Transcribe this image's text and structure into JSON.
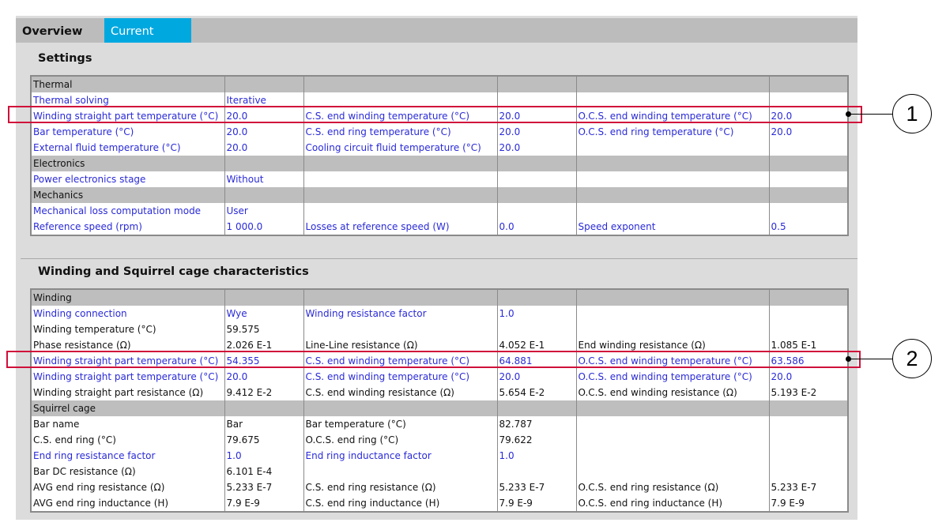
{
  "tabs": [
    {
      "label": "Overview",
      "active": false
    },
    {
      "label": "Current",
      "active": true
    }
  ],
  "colors": {
    "tab_active": "#00a8e0",
    "link_text": "#2a2ad8",
    "highlight": "#d0103a",
    "header_row": "#bebebe"
  },
  "settings": {
    "title": "Settings",
    "rows": [
      {
        "header": "Thermal"
      },
      {
        "cells": [
          [
            "Thermal solving",
            1
          ],
          [
            "Iterative",
            1
          ],
          [
            "",
            0
          ],
          [
            "",
            0
          ],
          [
            "",
            0
          ],
          [
            "",
            0
          ]
        ]
      },
      {
        "cells": [
          [
            "Winding straight part temperature (°C)",
            1
          ],
          [
            "20.0",
            1
          ],
          [
            "C.S. end winding temperature (°C)",
            1
          ],
          [
            "20.0",
            1
          ],
          [
            "O.C.S. end winding temperature (°C)",
            1
          ],
          [
            "20.0",
            1
          ]
        ]
      },
      {
        "cells": [
          [
            "Bar temperature (°C)",
            1
          ],
          [
            "20.0",
            1
          ],
          [
            "C.S. end ring temperature (°C)",
            1
          ],
          [
            "20.0",
            1
          ],
          [
            "O.C.S. end ring temperature (°C)",
            1
          ],
          [
            "20.0",
            1
          ]
        ]
      },
      {
        "cells": [
          [
            "External fluid temperature (°C)",
            1
          ],
          [
            "20.0",
            1
          ],
          [
            "Cooling circuit fluid temperature (°C)",
            1
          ],
          [
            "20.0",
            1
          ],
          [
            "",
            0
          ],
          [
            "",
            0
          ]
        ]
      },
      {
        "header": "Electronics"
      },
      {
        "cells": [
          [
            "Power electronics stage",
            1
          ],
          [
            "Without",
            1
          ],
          [
            "",
            0
          ],
          [
            "",
            0
          ],
          [
            "",
            0
          ],
          [
            "",
            0
          ]
        ]
      },
      {
        "header": "Mechanics"
      },
      {
        "cells": [
          [
            "Mechanical loss computation mode",
            1
          ],
          [
            "User",
            1
          ],
          [
            "",
            0
          ],
          [
            "",
            0
          ],
          [
            "",
            0
          ],
          [
            "",
            0
          ]
        ]
      },
      {
        "cells": [
          [
            "Reference speed (rpm)",
            1
          ],
          [
            "1 000.0",
            1
          ],
          [
            "Losses at reference speed (W)",
            1
          ],
          [
            "0.0",
            1
          ],
          [
            "Speed exponent",
            1
          ],
          [
            "0.5",
            1
          ]
        ]
      }
    ]
  },
  "winding": {
    "title": "Winding and Squirrel cage characteristics",
    "rows": [
      {
        "header": "Winding"
      },
      {
        "cells": [
          [
            "Winding connection",
            1
          ],
          [
            "Wye",
            1
          ],
          [
            "Winding resistance factor",
            1
          ],
          [
            "1.0",
            1
          ],
          [
            "",
            0
          ],
          [
            "",
            0
          ]
        ]
      },
      {
        "cells": [
          [
            "Winding temperature (°C)",
            0
          ],
          [
            "59.575",
            0
          ],
          [
            "",
            0
          ],
          [
            "",
            0
          ],
          [
            "",
            0
          ],
          [
            "",
            0
          ]
        ]
      },
      {
        "cells": [
          [
            "Phase resistance (Ω)",
            0
          ],
          [
            "2.026 E-1",
            0
          ],
          [
            "Line-Line resistance (Ω)",
            0
          ],
          [
            "4.052 E-1",
            0
          ],
          [
            "End winding resistance (Ω)",
            0
          ],
          [
            "1.085 E-1",
            0
          ]
        ]
      },
      {
        "cells": [
          [
            "Winding straight part temperature (°C)",
            1
          ],
          [
            "54.355",
            1
          ],
          [
            "C.S. end winding temperature (°C)",
            1
          ],
          [
            "64.881",
            1
          ],
          [
            "O.C.S. end winding temperature (°C)",
            1
          ],
          [
            "63.586",
            1
          ]
        ]
      },
      {
        "cells": [
          [
            "Winding straight part temperature (°C)",
            1
          ],
          [
            "20.0",
            1
          ],
          [
            "C.S. end winding temperature (°C)",
            1
          ],
          [
            "20.0",
            1
          ],
          [
            "O.C.S. end winding temperature (°C)",
            1
          ],
          [
            "20.0",
            1
          ]
        ]
      },
      {
        "cells": [
          [
            "Winding straight part resistance (Ω)",
            0
          ],
          [
            "9.412 E-2",
            0
          ],
          [
            "C.S. end winding resistance (Ω)",
            0
          ],
          [
            "5.654 E-2",
            0
          ],
          [
            "O.C.S. end winding resistance (Ω)",
            0
          ],
          [
            "5.193 E-2",
            0
          ]
        ]
      },
      {
        "header": "Squirrel cage"
      },
      {
        "cells": [
          [
            "Bar name",
            0
          ],
          [
            "Bar",
            0
          ],
          [
            "Bar temperature (°C)",
            0
          ],
          [
            "82.787",
            0
          ],
          [
            "",
            0
          ],
          [
            "",
            0
          ]
        ]
      },
      {
        "cells": [
          [
            "C.S. end ring (°C)",
            0
          ],
          [
            "79.675",
            0
          ],
          [
            "O.C.S. end ring (°C)",
            0
          ],
          [
            "79.622",
            0
          ],
          [
            "",
            0
          ],
          [
            "",
            0
          ]
        ]
      },
      {
        "cells": [
          [
            "End ring resistance factor",
            1
          ],
          [
            "1.0",
            1
          ],
          [
            "End ring inductance factor",
            1
          ],
          [
            "1.0",
            1
          ],
          [
            "",
            0
          ],
          [
            "",
            0
          ]
        ]
      },
      {
        "cells": [
          [
            "Bar DC resistance (Ω)",
            0
          ],
          [
            "6.101 E-4",
            0
          ],
          [
            "",
            0
          ],
          [
            "",
            0
          ],
          [
            "",
            0
          ],
          [
            "",
            0
          ]
        ]
      },
      {
        "cells": [
          [
            "AVG end ring resistance (Ω)",
            0
          ],
          [
            "5.233 E-7",
            0
          ],
          [
            "C.S. end ring resistance (Ω)",
            0
          ],
          [
            "5.233 E-7",
            0
          ],
          [
            "O.C.S. end ring resistance (Ω)",
            0
          ],
          [
            "5.233 E-7",
            0
          ]
        ]
      },
      {
        "cells": [
          [
            "AVG end ring inductance (H)",
            0
          ],
          [
            "7.9 E-9",
            0
          ],
          [
            "C.S. end ring inductance (H)",
            0
          ],
          [
            "7.9 E-9",
            0
          ],
          [
            "O.C.S. end ring inductance (H)",
            0
          ],
          [
            "7.9 E-9",
            0
          ]
        ]
      }
    ]
  },
  "callouts": [
    {
      "label": "1"
    },
    {
      "label": "2"
    }
  ]
}
